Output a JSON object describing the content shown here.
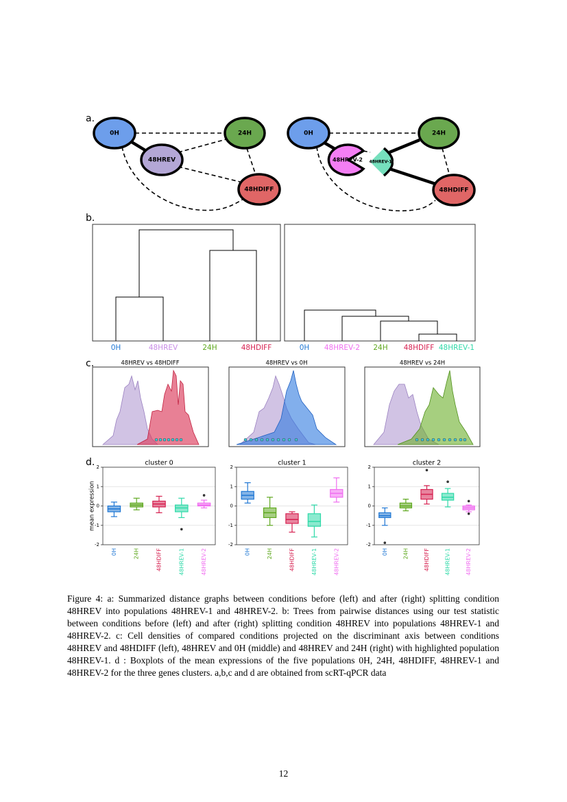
{
  "figure": {
    "panel_labels": [
      "a.",
      "b.",
      "c.",
      "d."
    ],
    "graph_left": {
      "nodes": [
        {
          "label": "0H",
          "color": "#6d9eeb"
        },
        {
          "label": "24H",
          "color": "#6aa84f"
        },
        {
          "label": "48HREV",
          "color": "#b4a7d6"
        },
        {
          "label": "48HDIFF",
          "color": "#e06666"
        }
      ]
    },
    "graph_right": {
      "nodes": [
        {
          "label": "0H",
          "color": "#6d9eeb"
        },
        {
          "label": "24H",
          "color": "#6aa84f"
        },
        {
          "label": "48HREV-2",
          "color": "#f47ef4"
        },
        {
          "label": "48HREV-1",
          "color": "#76e0bd"
        },
        {
          "label": "48HDIFF",
          "color": "#e06666"
        }
      ]
    },
    "tree_left": {
      "leaves": [
        {
          "label": "0H",
          "color": "#1f77d4"
        },
        {
          "label": "48HREV",
          "color": "#c88ce6"
        },
        {
          "label": "24H",
          "color": "#5fa81f"
        },
        {
          "label": "48HDIFF",
          "color": "#d62050"
        }
      ]
    },
    "tree_right": {
      "leaves": [
        {
          "label": "0H",
          "color": "#1f77d4"
        },
        {
          "label": "48HREV-2",
          "color": "#f06ef0"
        },
        {
          "label": "24H",
          "color": "#5fa81f"
        },
        {
          "label": "48HDIFF",
          "color": "#d62050"
        },
        {
          "label": "48HREV-1",
          "color": "#2ed9a8"
        }
      ]
    },
    "densities": {
      "titles": [
        "48HREV vs 48HDIFF",
        "48HREV vs 0H",
        "48HREV vs 24H"
      ]
    }
  },
  "chart_data": [
    {
      "type": "box",
      "title": "cluster 0",
      "ylabel": "mean expression",
      "categories": [
        "0H",
        "24H",
        "48HDIFF",
        "48HREV-1",
        "48HREV-2"
      ],
      "colors": [
        "#1f77d4",
        "#5fa81f",
        "#d62050",
        "#2ed9a8",
        "#f06ef0"
      ],
      "boxes": [
        {
          "min": -0.55,
          "q1": -0.3,
          "median": -0.15,
          "q3": 0.0,
          "max": 0.2
        },
        {
          "min": -0.2,
          "q1": -0.05,
          "median": 0.05,
          "q3": 0.15,
          "max": 0.4
        },
        {
          "min": -0.35,
          "q1": -0.05,
          "median": 0.1,
          "q3": 0.25,
          "max": 0.5
        },
        {
          "min": -0.6,
          "q1": -0.3,
          "median": -0.1,
          "q3": 0.05,
          "max": 0.4,
          "outliers": [
            -1.2
          ]
        },
        {
          "min": -0.1,
          "q1": 0.0,
          "median": 0.05,
          "q3": 0.15,
          "max": 0.3,
          "outliers": [
            0.55
          ]
        }
      ],
      "ylim": [
        -2,
        2
      ],
      "yticks": [
        -2,
        -1,
        0,
        1,
        2
      ],
      "grid": true
    },
    {
      "type": "box",
      "title": "cluster 1",
      "categories": [
        "0H",
        "24H",
        "48HDIFF",
        "48HREV-1",
        "48HREV-2"
      ],
      "colors": [
        "#1f77d4",
        "#5fa81f",
        "#d62050",
        "#2ed9a8",
        "#f06ef0"
      ],
      "boxes": [
        {
          "min": 0.15,
          "q1": 0.35,
          "median": 0.55,
          "q3": 0.75,
          "max": 1.2
        },
        {
          "min": -1.0,
          "q1": -0.6,
          "median": -0.35,
          "q3": -0.1,
          "max": 0.45
        },
        {
          "min": -1.35,
          "q1": -0.9,
          "median": -0.7,
          "q3": -0.4,
          "max": -0.3
        },
        {
          "min": -1.6,
          "q1": -1.05,
          "median": -0.8,
          "q3": -0.4,
          "max": 0.05
        },
        {
          "min": 0.2,
          "q1": 0.45,
          "median": 0.65,
          "q3": 0.85,
          "max": 1.45
        }
      ],
      "ylim": [
        -2,
        2
      ],
      "yticks": [
        -2,
        -1,
        0,
        1,
        2
      ],
      "grid": true
    },
    {
      "type": "box",
      "title": "cluster 2",
      "categories": [
        "0H",
        "24H",
        "48HDIFF",
        "48HREV-1",
        "48HREV-2"
      ],
      "colors": [
        "#1f77d4",
        "#5fa81f",
        "#d62050",
        "#2ed9a8",
        "#f06ef0"
      ],
      "boxes": [
        {
          "min": -1.0,
          "q1": -0.6,
          "median": -0.5,
          "q3": -0.35,
          "max": -0.1,
          "outliers": [
            -1.9
          ]
        },
        {
          "min": -0.25,
          "q1": -0.1,
          "median": 0.0,
          "q3": 0.15,
          "max": 0.35
        },
        {
          "min": 0.1,
          "q1": 0.35,
          "median": 0.6,
          "q3": 0.85,
          "max": 1.05,
          "outliers": [
            1.85
          ]
        },
        {
          "min": -0.05,
          "q1": 0.3,
          "median": 0.45,
          "q3": 0.65,
          "max": 0.9,
          "outliers": [
            1.25
          ]
        },
        {
          "min": -0.3,
          "q1": -0.2,
          "median": -0.1,
          "q3": 0.0,
          "max": 0.05,
          "outliers": [
            -0.4,
            0.25
          ]
        }
      ],
      "ylim": [
        -2,
        2
      ],
      "yticks": [
        -2,
        -1,
        0,
        1,
        2
      ],
      "grid": true
    }
  ],
  "caption": "Figure 4: a: Summarized distance graphs between conditions before (left) and after (right) splitting condition 48HREV into populations 48HREV-1 and 48HREV-2. b: Trees from pairwise distances using our test statistic between conditions before (left) and after (right) splitting condition 48HREV into populations 48HREV-1 and 48HREV-2. c: Cell densities of compared conditions projected on the discriminant axis between conditions 48HREV and 48HDIFF (left), 48HREV and 0H (middle) and 48HREV and 24H (right) with highlighted population 48HREV-1. d : Boxplots of the mean expressions of the five populations 0H, 24H, 48HDIFF, 48HREV-1 and 48HREV-2 for the three genes clusters. a,b,c and d are obtained from scRT-qPCR data",
  "page_number": "12"
}
